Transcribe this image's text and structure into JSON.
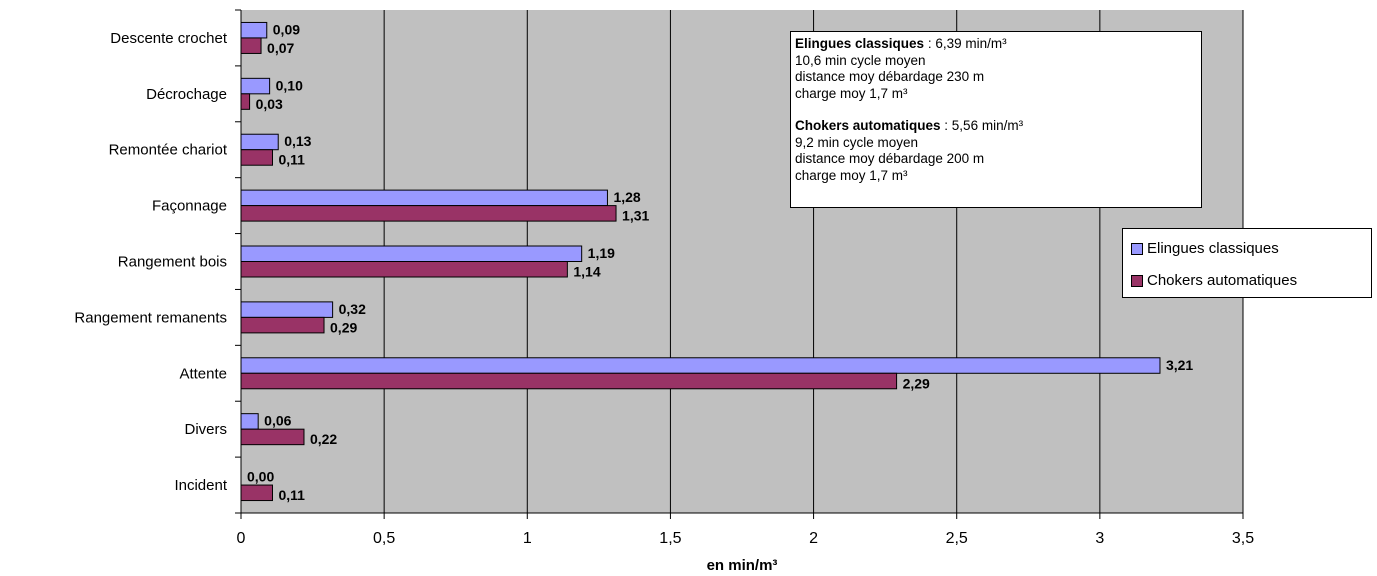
{
  "chart_data": {
    "type": "bar",
    "orientation": "horizontal",
    "categories": [
      "Descente crochet",
      "Décrochage",
      "Remontée chariot",
      "Façonnage",
      "Rangement bois",
      "Rangement remanents",
      "Attente",
      "Divers",
      "Incident"
    ],
    "series": [
      {
        "name": "Elingues classiques",
        "color": "#9999ff",
        "values": [
          0.09,
          0.1,
          0.13,
          1.28,
          1.19,
          0.32,
          3.21,
          0.06,
          0.0
        ],
        "labels": [
          "0,09",
          "0,10",
          "0,13",
          "1,28",
          "1,19",
          "0,32",
          "3,21",
          "0,06",
          "0,00"
        ]
      },
      {
        "name": "Chokers automatiques",
        "color": "#993366",
        "values": [
          0.07,
          0.03,
          0.11,
          1.31,
          1.14,
          0.29,
          2.29,
          0.22,
          0.11
        ],
        "labels": [
          "0,07",
          "0,03",
          "0,11",
          "1,31",
          "1,14",
          "0,29",
          "2,29",
          "0,22",
          "0,11"
        ]
      }
    ],
    "xlabel": "en min/m³",
    "xlim": [
      0,
      3.5
    ],
    "xticks": [
      "0",
      "0,5",
      "1",
      "1,5",
      "2",
      "2,5",
      "3",
      "3,5"
    ],
    "grid": "vertical",
    "plot_background": "#c0c0c0",
    "legend_position": "right"
  },
  "infobox": {
    "elingues_bold": "Elingues classiques",
    "elingues_rate": " : 6,39 min/m³",
    "elingues_lines": [
      "10,6 min cycle moyen",
      "distance moy débardage 230 m",
      "charge moy 1,7 m³"
    ],
    "chokers_bold": "Chokers automatiques",
    "chokers_rate": " : 5,56 min/m³",
    "chokers_lines": [
      "9,2 min cycle moyen",
      "distance moy débardage 200 m",
      "charge moy 1,7 m³"
    ]
  }
}
